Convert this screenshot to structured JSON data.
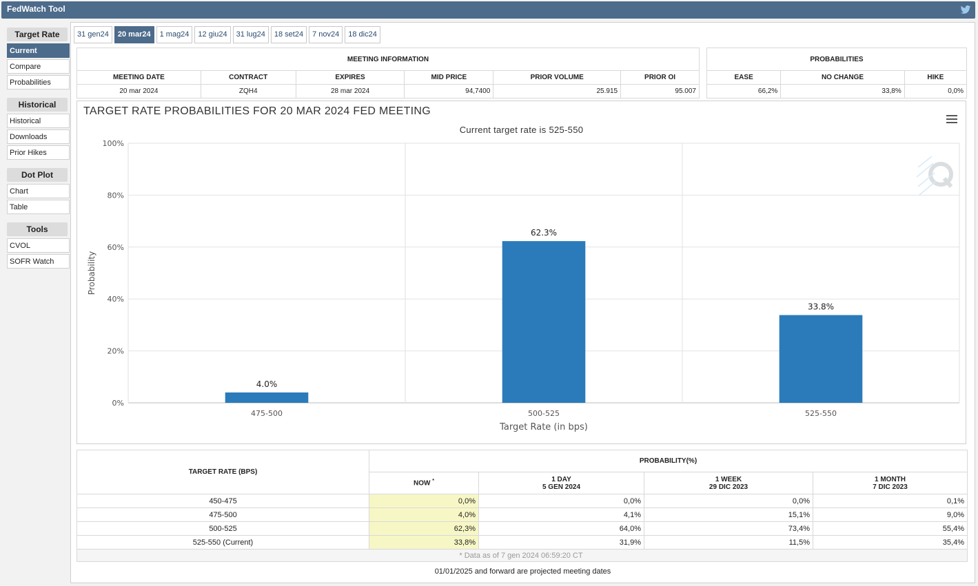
{
  "app": {
    "title": "FedWatch Tool",
    "twitter_icon": "twitter-icon"
  },
  "sidebar": {
    "groups": [
      {
        "title": "Target Rate",
        "items": [
          "Current",
          "Compare",
          "Probabilities"
        ]
      },
      {
        "title": "Historical",
        "items": [
          "Historical",
          "Downloads",
          "Prior Hikes"
        ]
      },
      {
        "title": "Dot Plot",
        "items": [
          "Chart",
          "Table"
        ]
      },
      {
        "title": "Tools",
        "items": [
          "CVOL",
          "SOFR Watch"
        ]
      }
    ],
    "active": "Current"
  },
  "tabs": [
    "31 gen24",
    "20 mar24",
    "1 mag24",
    "12 giu24",
    "31 lug24",
    "18 set24",
    "7 nov24",
    "18 dic24"
  ],
  "active_tab": "20 mar24",
  "meeting_info": {
    "title": "MEETING INFORMATION",
    "headers": [
      "MEETING DATE",
      "CONTRACT",
      "EXPIRES",
      "MID PRICE",
      "PRIOR VOLUME",
      "PRIOR OI"
    ],
    "values": [
      "20 mar 2024",
      "ZQH4",
      "28 mar 2024",
      "94,7400",
      "25.915",
      "95.007"
    ]
  },
  "probabilities": {
    "title": "PROBABILITIES",
    "headers": [
      "EASE",
      "NO CHANGE",
      "HIKE"
    ],
    "values": [
      "66,2%",
      "33,8%",
      "0,0%"
    ]
  },
  "chart": {
    "title": "TARGET RATE PROBABILITIES FOR 20 MAR 2024 FED MEETING",
    "subtitle": "Current target rate is 525-550",
    "menu_icon": "hamburger-menu-icon",
    "watermark_icon": "q-logo-icon"
  },
  "chart_data": {
    "type": "bar",
    "title": "TARGET RATE PROBABILITIES FOR 20 MAR 2024 FED MEETING",
    "subtitle": "Current target rate is 525-550",
    "categories": [
      "475-500",
      "500-525",
      "525-550"
    ],
    "values": [
      4.0,
      62.3,
      33.8
    ],
    "labels": [
      "4.0%",
      "62.3%",
      "33.8%"
    ],
    "xlabel": "Target Rate (in bps)",
    "ylabel": "Probability",
    "ylim": [
      0,
      100
    ],
    "yticks": [
      "0%",
      "20%",
      "40%",
      "60%",
      "80%",
      "100%"
    ],
    "grid": true,
    "color": "#2b7bba"
  },
  "prob_table": {
    "col_rate": "TARGET RATE (BPS)",
    "col_group": "PROBABILITY(%)",
    "columns": [
      {
        "l1": "NOW",
        "l2": ""
      },
      {
        "l1": "1 DAY",
        "l2": "5 GEN 2024"
      },
      {
        "l1": "1 WEEK",
        "l2": "29 DIC 2023"
      },
      {
        "l1": "1 MONTH",
        "l2": "7 DIC 2023"
      }
    ],
    "now_marker": "*",
    "rows": [
      {
        "rate": "450-475",
        "values": [
          "0,0%",
          "0,0%",
          "0,0%",
          "0,1%"
        ]
      },
      {
        "rate": "475-500",
        "values": [
          "4,0%",
          "4,1%",
          "15,1%",
          "9,0%"
        ]
      },
      {
        "rate": "500-525",
        "values": [
          "62,3%",
          "64,0%",
          "73,4%",
          "55,4%"
        ]
      },
      {
        "rate": "525-550 (Current)",
        "values": [
          "33,8%",
          "31,9%",
          "11,5%",
          "35,4%"
        ]
      }
    ],
    "note": "* Data as of 7 gen 2024 06:59:20 CT"
  },
  "footer": "01/01/2025 and forward are projected meeting dates"
}
